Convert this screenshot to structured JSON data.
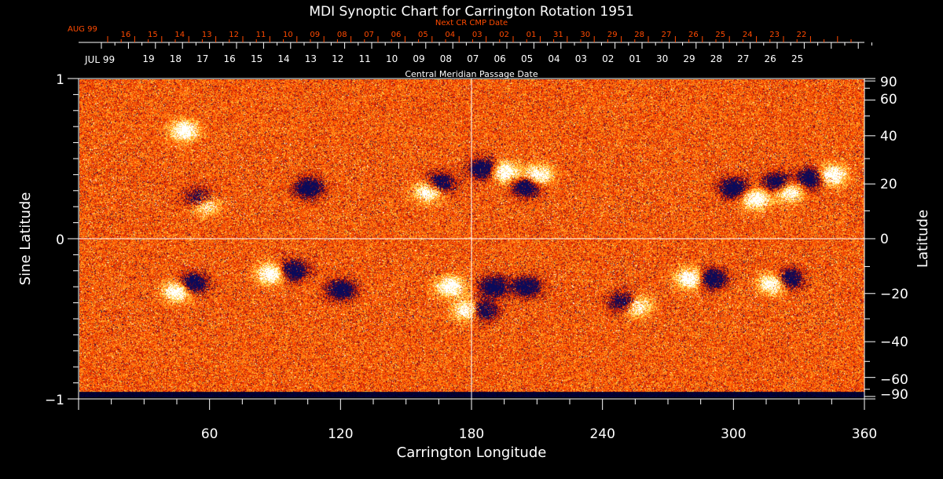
{
  "chart_data": {
    "type": "heatmap",
    "title": "MDI Synoptic Chart for Carrington Rotation 1951",
    "xlabel": "Carrington Longitude",
    "ylabel": "Sine Latitude",
    "y2label": "Latitude",
    "xlim": [
      0,
      360
    ],
    "ylim": [
      -1,
      1
    ],
    "x_ticks": [
      60,
      120,
      180,
      240,
      300,
      360
    ],
    "y_ticks": [
      {
        "value": 1,
        "label": "1"
      },
      {
        "value": 0,
        "label": "0"
      },
      {
        "value": -1,
        "label": "−1"
      }
    ],
    "y2_ticks": [
      90,
      60,
      40,
      20,
      0,
      -20,
      -40,
      -60,
      -90
    ],
    "top_axis_cmp": {
      "label": "Central Meridian Passage Date",
      "month_label": "JUL 99",
      "dates": [
        "19",
        "18",
        "17",
        "16",
        "15",
        "14",
        "13",
        "12",
        "11",
        "10",
        "09",
        "08",
        "07",
        "06",
        "05",
        "04",
        "03",
        "02",
        "01",
        "30",
        "29",
        "28",
        "27",
        "26",
        "25"
      ]
    },
    "top_axis_next_cr": {
      "label": "Next CR CMP Date",
      "month_label": "AUG 99",
      "dates": [
        "16",
        "15",
        "14",
        "13",
        "12",
        "11",
        "10",
        "09",
        "08",
        "07",
        "06",
        "05",
        "04",
        "03",
        "02",
        "01",
        "31",
        "30",
        "29",
        "28",
        "27",
        "26",
        "25",
        "24",
        "23",
        "22"
      ]
    },
    "colormap": {
      "background": "#ff4a00",
      "positive": "#ffffff",
      "negative": "#000060"
    },
    "grid": "center lines at longitude 180 and latitude 0"
  }
}
